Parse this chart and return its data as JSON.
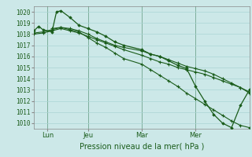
{
  "background_color": "#cce8e8",
  "grid_color": "#aad4d4",
  "line_color": "#1a5c1a",
  "title": "Pression niveau de la mer( hPa )",
  "ylim": [
    1009.5,
    1020.5
  ],
  "yticks": [
    1010,
    1011,
    1012,
    1013,
    1014,
    1015,
    1016,
    1017,
    1018,
    1019,
    1020
  ],
  "xlim": [
    0,
    288
  ],
  "xtick_positions": [
    18,
    72,
    144,
    216
  ],
  "xtick_labels": [
    "Lun",
    "Jeu",
    "Mar",
    "Mer"
  ],
  "xvline_positions": [
    18,
    72,
    144,
    216
  ],
  "series1_x": [
    0,
    6,
    12,
    24,
    30,
    36,
    48,
    60,
    72,
    84,
    96,
    108,
    120,
    144,
    156,
    168,
    180,
    192,
    204,
    216,
    228,
    240,
    252,
    264,
    276,
    288
  ],
  "series1_y": [
    1018.3,
    1018.7,
    1018.4,
    1018.2,
    1020.0,
    1020.1,
    1019.5,
    1018.8,
    1018.5,
    1018.2,
    1017.8,
    1017.3,
    1017.0,
    1016.6,
    1016.2,
    1016.0,
    1015.6,
    1015.2,
    1014.9,
    1013.3,
    1012.0,
    1010.8,
    1010.0,
    1009.6,
    1011.6,
    1013.0
  ],
  "series2_x": [
    0,
    12,
    24,
    36,
    48,
    60,
    72,
    84,
    96,
    108,
    120,
    144,
    156,
    168,
    180,
    192,
    204,
    216,
    228,
    240,
    252,
    264,
    276,
    288
  ],
  "series2_y": [
    1018.0,
    1018.1,
    1018.3,
    1018.5,
    1018.3,
    1018.1,
    1017.8,
    1017.5,
    1017.2,
    1016.9,
    1016.6,
    1016.1,
    1015.8,
    1015.5,
    1015.3,
    1015.0,
    1014.8,
    1014.6,
    1014.4,
    1014.1,
    1013.8,
    1013.5,
    1013.2,
    1012.7
  ],
  "series3_x": [
    0,
    12,
    24,
    36,
    48,
    60,
    72,
    84,
    96,
    108,
    120,
    144,
    156,
    168,
    180,
    192,
    204,
    216,
    228,
    240,
    252,
    264,
    276,
    288
  ],
  "series3_y": [
    1018.1,
    1018.2,
    1018.4,
    1018.6,
    1018.5,
    1018.3,
    1018.0,
    1017.6,
    1017.3,
    1017.0,
    1016.8,
    1016.5,
    1016.2,
    1016.0,
    1015.7,
    1015.4,
    1015.1,
    1014.9,
    1014.7,
    1014.4,
    1014.0,
    1013.6,
    1013.2,
    1012.8
  ],
  "series4_x": [
    24,
    36,
    48,
    60,
    72,
    84,
    96,
    108,
    120,
    144,
    156,
    168,
    180,
    192,
    204,
    216,
    228,
    240,
    252,
    264,
    276,
    288
  ],
  "series4_y": [
    1018.5,
    1018.6,
    1018.4,
    1018.2,
    1017.7,
    1017.2,
    1016.8,
    1016.3,
    1015.8,
    1015.3,
    1014.8,
    1014.3,
    1013.8,
    1013.3,
    1012.7,
    1012.2,
    1011.7,
    1011.2,
    1010.7,
    1010.2,
    1009.8,
    1009.6
  ]
}
